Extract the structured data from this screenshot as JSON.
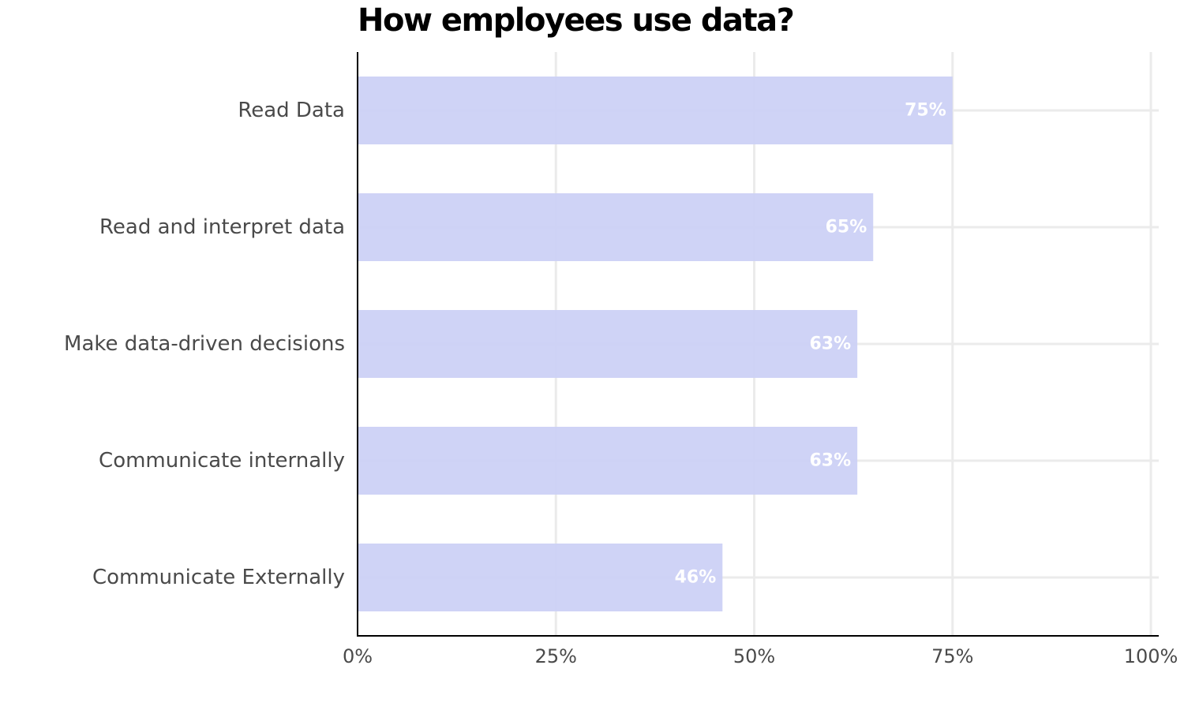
{
  "chart_data": {
    "type": "bar",
    "orientation": "horizontal",
    "title": "How employees use data?",
    "xlabel": "",
    "ylabel": "",
    "categories": [
      "Read Data",
      "Read and interpret data",
      "Make data-driven decisions",
      "Communicate internally",
      "Communicate Externally"
    ],
    "values": [
      75,
      65,
      63,
      63,
      46
    ],
    "value_labels": [
      "75%",
      "65%",
      "63%",
      "63%",
      "46%"
    ],
    "xlim": [
      0,
      100
    ],
    "x_ticks": [
      0,
      25,
      50,
      75,
      100
    ],
    "x_tick_labels": [
      "0%",
      "25%",
      "50%",
      "75%",
      "100%"
    ],
    "grid": true,
    "legend": "none",
    "colors": {
      "bar": "#cbcff5",
      "grid": "#ebebeb",
      "axis": "#000000",
      "value_label": "#ffffff",
      "text": "#4a4a4a",
      "title": "#000000"
    }
  }
}
